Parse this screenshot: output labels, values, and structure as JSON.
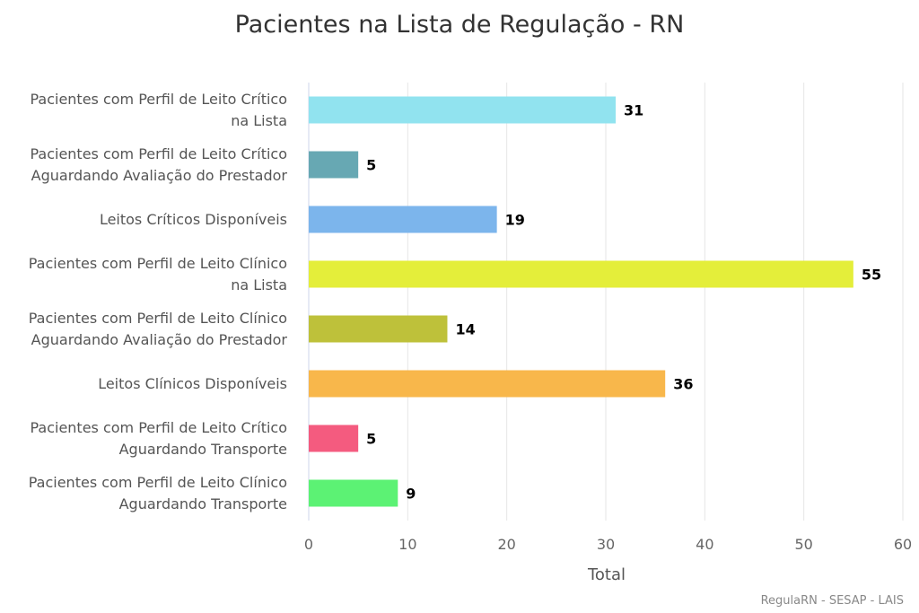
{
  "chart_data": {
    "type": "bar",
    "orientation": "horizontal",
    "title": "Pacientes na Lista de Regulação - RN",
    "xlabel": "Total",
    "ylabel": "",
    "xlim": [
      0,
      60
    ],
    "ticks": [
      0,
      10,
      20,
      30,
      40,
      50,
      60
    ],
    "grid": true,
    "legend": "none",
    "categories": [
      "Pacientes com Perfil de Leito Crítico na Lista",
      "Pacientes com Perfil de Leito Crítico Aguardando Avaliação do Prestador",
      "Leitos Críticos Disponíveis",
      "Pacientes com Perfil de Leito Clínico na Lista",
      "Pacientes com Perfil de Leito Clínico Aguardando Avaliação do Prestador",
      "Leitos Clínicos Disponíveis",
      "Pacientes com Perfil de Leito Crítico Aguardando Transporte",
      "Pacientes com Perfil de Leito Clínico Aguardando Transporte"
    ],
    "values": [
      31,
      5,
      19,
      55,
      14,
      36,
      5,
      9
    ],
    "colors": [
      "#91e3ef",
      "#67a8b3",
      "#7cb5ec",
      "#e4ee3a",
      "#bec13a",
      "#f8b74b",
      "#f45b7f",
      "#5cf274"
    ]
  },
  "credits": "RegulaRN - SESAP - LAIS"
}
